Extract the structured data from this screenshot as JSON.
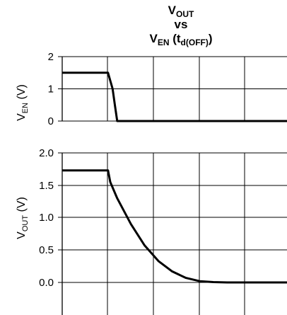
{
  "chart_data": [
    {
      "type": "line",
      "title": {
        "line1_main": "V",
        "line1_sub": "OUT",
        "line2": "vs",
        "line3_main": "V",
        "line3_sub": "EN",
        "line3_rest": " (t",
        "line3_sub2": "d(OFF)",
        "line3_end": ")"
      },
      "ylabel": {
        "main": "V",
        "sub": "EN",
        "unit": " (V)"
      },
      "ylim": [
        0,
        2
      ],
      "yticks": [
        "0",
        "1",
        "2"
      ],
      "grid": true,
      "series": [
        {
          "points": [
            [
              0,
              1.5
            ],
            [
              1.0,
              1.5
            ],
            [
              1.1,
              1.0
            ],
            [
              1.15,
              0.5
            ],
            [
              1.2,
              0.0
            ],
            [
              8.0,
              0.0
            ]
          ]
        }
      ]
    },
    {
      "type": "line",
      "ylabel": {
        "main": "V",
        "sub": "OUT",
        "unit": " (V)"
      },
      "ylim": [
        0,
        2
      ],
      "yticks": [
        "0.0",
        "0.5",
        "1.0",
        "1.5",
        "2.0"
      ],
      "grid": true,
      "series": [
        {
          "points": [
            [
              0,
              1.73
            ],
            [
              1.0,
              1.73
            ],
            [
              1.05,
              1.55
            ],
            [
              1.2,
              1.3
            ],
            [
              1.5,
              0.9
            ],
            [
              1.8,
              0.57
            ],
            [
              2.1,
              0.33
            ],
            [
              2.4,
              0.17
            ],
            [
              2.7,
              0.07
            ],
            [
              3.0,
              0.02
            ],
            [
              3.3,
              0.005
            ],
            [
              3.6,
              0.0
            ],
            [
              8.0,
              0.0
            ]
          ]
        }
      ]
    }
  ]
}
